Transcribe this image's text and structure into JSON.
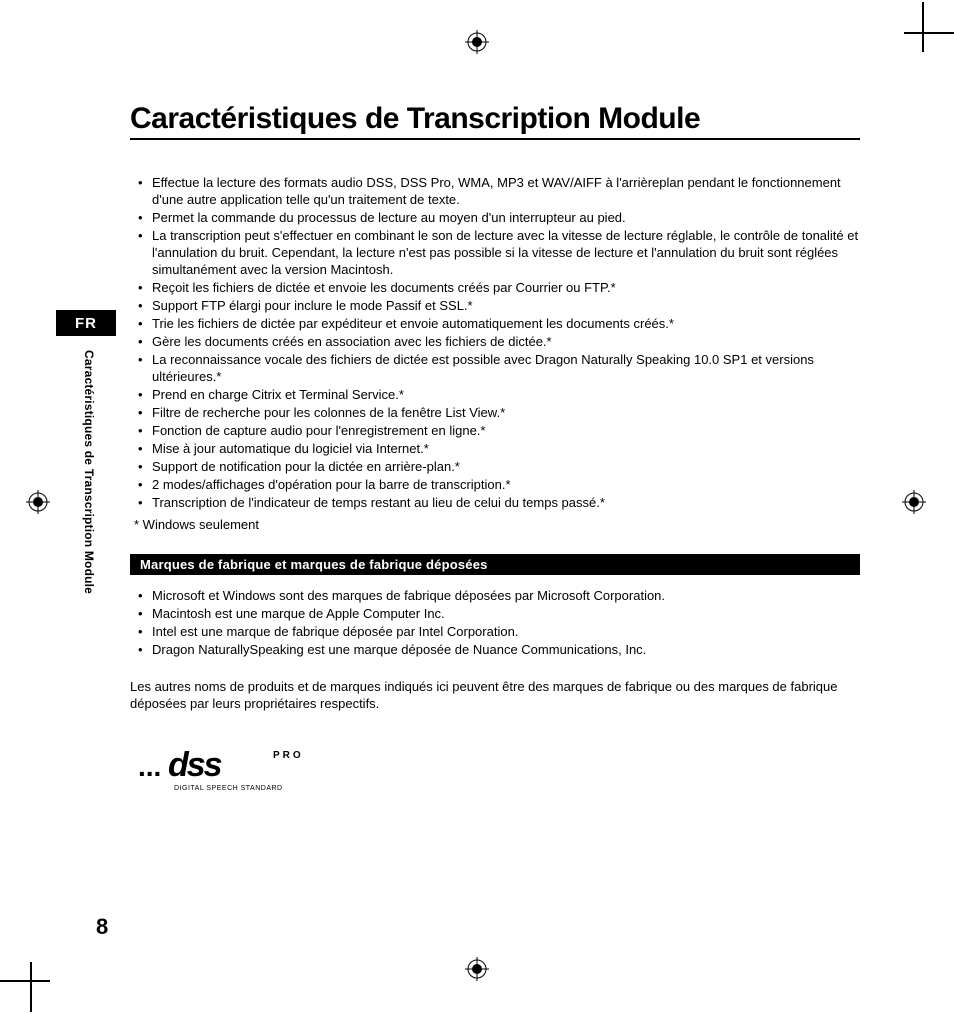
{
  "lang_tab": "FR",
  "side_label": "Caractéristiques de Transcription Module",
  "page_number": "8",
  "title": "Caractéristiques de Transcription Module",
  "features": [
    "Effectue la lecture des formats audio DSS, DSS Pro, WMA, MP3 et WAV/AIFF à l'arrièreplan pendant le fonctionnement d'une autre application telle qu'un traitement de texte.",
    "Permet la commande du processus de lecture au moyen d'un interrupteur au pied.",
    "La transcription peut s'effectuer en combinant le son de lecture avec la vitesse de lecture réglable, le contrôle de tonalité et l'annulation du bruit. Cependant, la lecture n'est pas possible si la vitesse de lecture et l'annulation du bruit sont réglées simultanément avec la version Macintosh.",
    "Reçoit les fichiers de dictée et envoie les documents créés par Courrier ou FTP.*",
    "Support FTP élargi pour inclure le mode Passif et SSL.*",
    "Trie les fichiers de dictée par expéditeur et envoie automatiquement les documents créés.*",
    "Gère les documents créés en association avec les fichiers de dictée.*",
    "La reconnaissance vocale des fichiers de dictée est possible avec Dragon Naturally Speaking 10.0 SP1 et versions ultérieures.*",
    "Prend en charge Citrix et Terminal Service.*",
    "Filtre de recherche pour les colonnes de la fenêtre List View.*",
    "Fonction de capture audio pour l'enregistrement en ligne.*",
    "Mise à jour automatique du logiciel via Internet.*",
    "Support de notification pour la dictée en arrière-plan.*",
    "2 modes/affichages d'opération pour la barre de transcription.*",
    "Transcription de l'indicateur de temps restant au lieu de celui du temps passé.*"
  ],
  "footnote": "* Windows seulement",
  "trademark_heading": "Marques de fabrique et marques de fabrique déposées",
  "trademarks": [
    "Microsoft et Windows sont des marques de fabrique déposées par Microsoft Corporation.",
    "Macintosh est une marque de Apple Computer Inc.",
    "Intel est une marque de fabrique déposée par Intel Corporation.",
    "Dragon NaturallySpeaking est une marque déposée de Nuance Communications, Inc."
  ],
  "para": "Les autres noms de produits et de marques indiqués ici peuvent être des marques de fabrique ou des marques de fabrique déposées par leurs propriétaires respectifs.",
  "logo": {
    "main": "dss",
    "tag": "PRO",
    "sub": "DIGITAL SPEECH STANDARD",
    "dots": "..."
  }
}
